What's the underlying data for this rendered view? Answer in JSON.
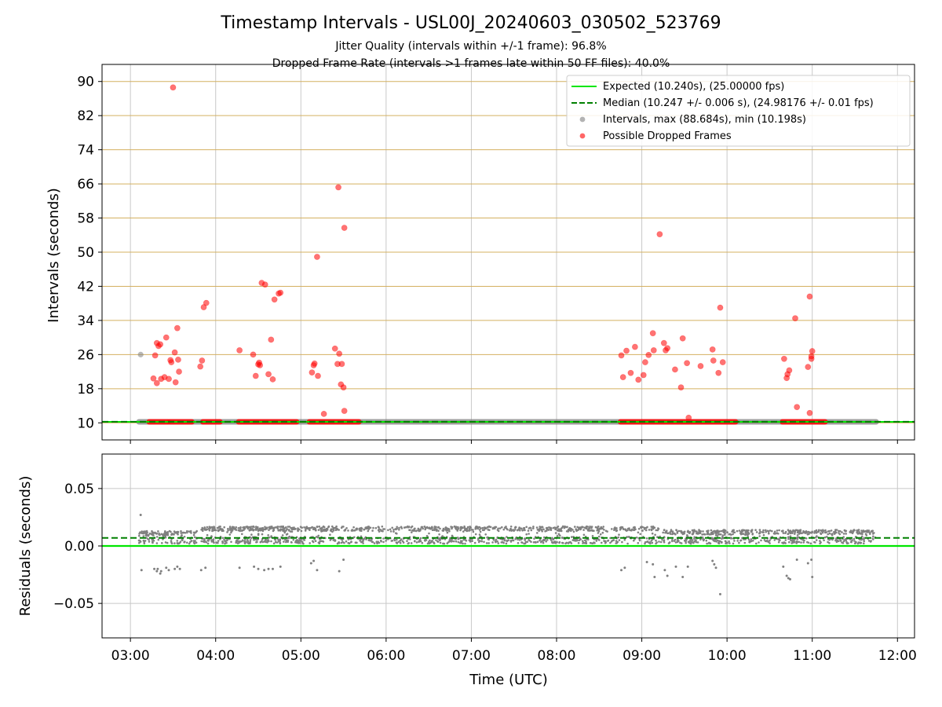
{
  "title": "Timestamp Intervals - USL00J_20240603_030502_523769",
  "subtitle_line1": "Jitter Quality (intervals within +/-1 frame): 96.8%",
  "subtitle_line2": "Dropped Frame Rate (intervals >1 frames late within 50 FF files): 40.0%",
  "colors": {
    "expected": "#00e600",
    "median": "#008000",
    "intervals": "#808080",
    "dropped": "#ff0000",
    "hgrid_top": "#d4b060",
    "grid": "#c8c8c8"
  },
  "chart_data": [
    {
      "type": "scatter",
      "name": "intervals-panel",
      "title": "",
      "xlabel": "",
      "ylabel": "Intervals (seconds)",
      "x_unit": "hours UTC",
      "xlim": [
        2.667,
        12.2
      ],
      "ylim": [
        6,
        94
      ],
      "x_ticks": [
        3,
        4,
        5,
        6,
        7,
        8,
        9,
        10,
        11,
        12
      ],
      "y_ticks": [
        10,
        18,
        26,
        34,
        42,
        50,
        58,
        66,
        74,
        82,
        90
      ],
      "y_tick_labels": [
        "10",
        "18",
        "26",
        "34",
        "42",
        "50",
        "58",
        "66",
        "74",
        "82",
        "90"
      ],
      "grid": true,
      "legend_position": "top-right",
      "legend": [
        {
          "label": "Expected (10.240s), (25.00000 fps)",
          "kind": "solid-line",
          "color": "#00e600"
        },
        {
          "label": "Median (10.247 +/- 0.006 s), (24.98176 +/- 0.01 fps)",
          "kind": "dashed-line",
          "color": "#008000"
        },
        {
          "label": "Intervals, max (88.684s), min (10.198s)",
          "kind": "marker",
          "color": "#808080"
        },
        {
          "label": "Possible Dropped Frames",
          "kind": "marker",
          "color": "#ff0000"
        }
      ],
      "expected_value": 10.24,
      "median_value": 10.247,
      "baseline": {
        "value": 10.24,
        "x_start": 3.1,
        "x_end": 11.75
      },
      "dropped_baseline_segments": [
        [
          3.22,
          3.44
        ],
        [
          3.46,
          3.72
        ],
        [
          3.85,
          4.05
        ],
        [
          4.27,
          4.95
        ],
        [
          5.1,
          5.68
        ],
        [
          8.75,
          10.1
        ],
        [
          10.65,
          11.15
        ]
      ],
      "gray_outliers": [
        [
          3.12,
          26.0
        ]
      ],
      "dropped_points": [
        [
          3.27,
          20.4
        ],
        [
          3.29,
          25.8
        ],
        [
          3.31,
          28.7
        ],
        [
          3.31,
          19.3
        ],
        [
          3.33,
          28.0
        ],
        [
          3.35,
          28.4
        ],
        [
          3.36,
          20.3
        ],
        [
          3.4,
          20.7
        ],
        [
          3.42,
          30.0
        ],
        [
          3.45,
          20.3
        ],
        [
          3.47,
          24.7
        ],
        [
          3.48,
          24.2
        ],
        [
          3.5,
          88.6
        ],
        [
          3.52,
          26.5
        ],
        [
          3.53,
          19.5
        ],
        [
          3.55,
          32.2
        ],
        [
          3.56,
          24.8
        ],
        [
          3.57,
          22.0
        ],
        [
          3.82,
          23.2
        ],
        [
          3.84,
          24.6
        ],
        [
          3.86,
          37.1
        ],
        [
          3.89,
          38.1
        ],
        [
          4.28,
          27.0
        ],
        [
          4.44,
          26.0
        ],
        [
          4.47,
          21.0
        ],
        [
          4.5,
          23.7
        ],
        [
          4.51,
          24.1
        ],
        [
          4.52,
          23.5
        ],
        [
          4.54,
          42.8
        ],
        [
          4.58,
          42.4
        ],
        [
          4.62,
          21.4
        ],
        [
          4.65,
          29.5
        ],
        [
          4.67,
          20.2
        ],
        [
          4.69,
          38.9
        ],
        [
          4.74,
          40.3
        ],
        [
          4.76,
          40.5
        ],
        [
          5.13,
          21.8
        ],
        [
          5.15,
          23.5
        ],
        [
          5.16,
          23.9
        ],
        [
          5.19,
          48.9
        ],
        [
          5.2,
          21.0
        ],
        [
          5.27,
          12.1
        ],
        [
          5.4,
          27.4
        ],
        [
          5.43,
          23.8
        ],
        [
          5.44,
          65.2
        ],
        [
          5.45,
          26.2
        ],
        [
          5.47,
          19.0
        ],
        [
          5.48,
          23.8
        ],
        [
          5.5,
          18.3
        ],
        [
          5.51,
          55.7
        ],
        [
          5.51,
          12.8
        ],
        [
          8.76,
          25.8
        ],
        [
          8.78,
          20.7
        ],
        [
          8.82,
          26.9
        ],
        [
          8.87,
          21.7
        ],
        [
          8.92,
          27.8
        ],
        [
          8.96,
          20.1
        ],
        [
          9.02,
          21.2
        ],
        [
          9.04,
          24.2
        ],
        [
          9.08,
          25.9
        ],
        [
          9.13,
          31.0
        ],
        [
          9.14,
          27.0
        ],
        [
          9.21,
          54.2
        ],
        [
          9.26,
          28.7
        ],
        [
          9.28,
          27.0
        ],
        [
          9.3,
          27.5
        ],
        [
          9.39,
          22.5
        ],
        [
          9.46,
          18.3
        ],
        [
          9.48,
          29.8
        ],
        [
          9.53,
          24.0
        ],
        [
          9.55,
          11.2
        ],
        [
          9.69,
          23.3
        ],
        [
          9.83,
          27.2
        ],
        [
          9.84,
          24.6
        ],
        [
          9.9,
          21.7
        ],
        [
          9.92,
          37.0
        ],
        [
          9.95,
          24.2
        ],
        [
          10.67,
          25.0
        ],
        [
          10.7,
          20.5
        ],
        [
          10.71,
          21.4
        ],
        [
          10.73,
          22.3
        ],
        [
          10.8,
          34.5
        ],
        [
          10.82,
          13.7
        ],
        [
          10.95,
          23.1
        ],
        [
          10.97,
          12.3
        ],
        [
          10.97,
          39.6
        ],
        [
          10.99,
          25.0
        ],
        [
          10.99,
          25.6
        ],
        [
          11.0,
          26.8
        ]
      ]
    },
    {
      "type": "scatter",
      "name": "residuals-panel",
      "title": "",
      "xlabel": "Time (UTC)",
      "ylabel": "Residuals (seconds)",
      "x_unit": "hours UTC",
      "xlim": [
        2.667,
        12.2
      ],
      "ylim": [
        -0.08,
        0.08
      ],
      "x_ticks": [
        3,
        4,
        5,
        6,
        7,
        8,
        9,
        10,
        11,
        12
      ],
      "x_tick_labels": [
        "03:00",
        "04:00",
        "05:00",
        "06:00",
        "07:00",
        "08:00",
        "09:00",
        "10:00",
        "11:00",
        "12:00"
      ],
      "y_ticks": [
        0.05,
        0.0,
        -0.05
      ],
      "y_tick_labels": [
        "0.05",
        "0.00",
        "−0.05"
      ],
      "grid": true,
      "expected_residual": 0.0,
      "median_residual": 0.007,
      "residual_x_range": [
        3.1,
        11.75
      ],
      "residual_bands": [
        {
          "x_range": [
            3.1,
            3.78
          ],
          "y_range": [
            0.002,
            0.013
          ]
        },
        {
          "x_range": [
            3.83,
            9.2
          ],
          "y_range": [
            0.002,
            0.017
          ]
        },
        {
          "x_range": [
            9.2,
            11.75
          ],
          "y_range": [
            0.002,
            0.014
          ]
        }
      ],
      "residual_outliers": [
        [
          3.12,
          0.027
        ],
        [
          3.13,
          -0.021
        ],
        [
          3.28,
          -0.02
        ],
        [
          3.31,
          -0.022
        ],
        [
          3.32,
          -0.02
        ],
        [
          3.35,
          -0.024
        ],
        [
          3.36,
          -0.022
        ],
        [
          3.42,
          -0.019
        ],
        [
          3.45,
          -0.021
        ],
        [
          3.52,
          -0.02
        ],
        [
          3.55,
          -0.018
        ],
        [
          3.58,
          -0.02
        ],
        [
          3.83,
          -0.021
        ],
        [
          3.88,
          -0.019
        ],
        [
          4.28,
          -0.019
        ],
        [
          4.45,
          -0.018
        ],
        [
          4.5,
          -0.02
        ],
        [
          4.57,
          -0.021
        ],
        [
          4.62,
          -0.02
        ],
        [
          4.67,
          -0.02
        ],
        [
          4.76,
          -0.018
        ],
        [
          5.12,
          -0.015
        ],
        [
          5.15,
          -0.013
        ],
        [
          5.19,
          -0.021
        ],
        [
          5.45,
          -0.022
        ],
        [
          5.5,
          -0.012
        ],
        [
          8.76,
          -0.021
        ],
        [
          8.8,
          -0.019
        ],
        [
          9.06,
          -0.014
        ],
        [
          9.13,
          -0.016
        ],
        [
          9.15,
          -0.027
        ],
        [
          9.27,
          -0.021
        ],
        [
          9.3,
          -0.026
        ],
        [
          9.4,
          -0.018
        ],
        [
          9.48,
          -0.027
        ],
        [
          9.54,
          -0.018
        ],
        [
          9.83,
          -0.013
        ],
        [
          9.85,
          -0.016
        ],
        [
          9.87,
          -0.019
        ],
        [
          9.92,
          -0.042
        ],
        [
          10.66,
          -0.018
        ],
        [
          10.7,
          -0.026
        ],
        [
          10.72,
          -0.028
        ],
        [
          10.74,
          -0.029
        ],
        [
          10.82,
          -0.012
        ],
        [
          10.95,
          -0.015
        ],
        [
          10.99,
          -0.012
        ],
        [
          11.0,
          -0.027
        ]
      ]
    }
  ]
}
